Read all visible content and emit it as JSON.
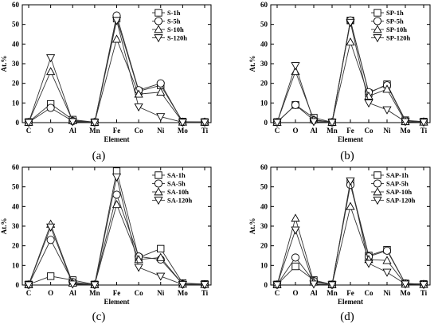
{
  "figure": {
    "panel_count": 4
  },
  "chart_data": [
    {
      "type": "line",
      "panel_label": "(a)",
      "xlabel": "Element",
      "ylabel": "At.%",
      "categories": [
        "C",
        "O",
        "Al",
        "Mn",
        "Fe",
        "Co",
        "Ni",
        "Mo",
        "Ti"
      ],
      "ylim": [
        0,
        60
      ],
      "yticks": [
        0,
        10,
        20,
        30,
        40,
        50,
        60
      ],
      "legend_position": "top-right",
      "series": [
        {
          "name": "S-1h",
          "marker": "square",
          "values": [
            0.3,
            9.5,
            1.5,
            0.2,
            53,
            16,
            19,
            0.5,
            0.3
          ]
        },
        {
          "name": "S-5h",
          "marker": "circle",
          "values": [
            0.2,
            7.5,
            0.8,
            0.2,
            54.5,
            16.5,
            20,
            0.3,
            0.3
          ]
        },
        {
          "name": "S-10h",
          "marker": "triangle-up",
          "values": [
            0.2,
            26,
            1,
            0.2,
            42.5,
            14.5,
            15.5,
            0.3,
            0.3
          ]
        },
        {
          "name": "S-120h",
          "marker": "triangle-down",
          "values": [
            0.1,
            33,
            0.5,
            0.1,
            52,
            8,
            3,
            0.2,
            0.2
          ]
        }
      ]
    },
    {
      "type": "line",
      "panel_label": "(b)",
      "xlabel": "Element",
      "ylabel": "At.%",
      "categories": [
        "C",
        "O",
        "Al",
        "Mn",
        "Fe",
        "Co",
        "Ni",
        "Mo",
        "Ti"
      ],
      "ylim": [
        0,
        60
      ],
      "yticks": [
        0,
        10,
        20,
        30,
        40,
        50,
        60
      ],
      "legend_position": "top-right",
      "series": [
        {
          "name": "SP-1h",
          "marker": "square",
          "values": [
            0.3,
            9,
            2.5,
            0.2,
            52,
            15,
            19.5,
            1.2,
            0.5
          ]
        },
        {
          "name": "SP-5h",
          "marker": "circle",
          "values": [
            0.2,
            9,
            1.2,
            0.2,
            52,
            15.5,
            19,
            1,
            0.5
          ]
        },
        {
          "name": "SP-10h",
          "marker": "triangle-up",
          "values": [
            0.2,
            26,
            1.5,
            0.2,
            41,
            13.5,
            17,
            0.5,
            0.3
          ]
        },
        {
          "name": "SP-120h",
          "marker": "triangle-down",
          "values": [
            0.1,
            29,
            0.5,
            0.1,
            51,
            10,
            6.5,
            0.5,
            0.2
          ]
        }
      ]
    },
    {
      "type": "line",
      "panel_label": "(c)",
      "xlabel": "Element",
      "ylabel": "At.%",
      "categories": [
        "C",
        "O",
        "Al",
        "Mn",
        "Fe",
        "Co",
        "Ni",
        "Mo",
        "Ti"
      ],
      "ylim": [
        0,
        60
      ],
      "yticks": [
        0,
        10,
        20,
        30,
        40,
        50,
        60
      ],
      "legend_position": "top-right",
      "series": [
        {
          "name": "SA-1h",
          "marker": "square",
          "values": [
            0.3,
            4.5,
            2.5,
            0.3,
            58,
            14,
            18.5,
            1,
            0.5
          ]
        },
        {
          "name": "SA-5h",
          "marker": "circle",
          "values": [
            0.2,
            23,
            1.5,
            0.2,
            46,
            14.5,
            13,
            0.5,
            0.3
          ]
        },
        {
          "name": "SA-10h",
          "marker": "triangle-up",
          "values": [
            0.2,
            31,
            1,
            0.2,
            41,
            13,
            14,
            0.5,
            0.3
          ]
        },
        {
          "name": "SA-120h",
          "marker": "triangle-down",
          "values": [
            0.1,
            29.5,
            0.5,
            0.1,
            55,
            9,
            4.5,
            0.3,
            0.2
          ]
        }
      ]
    },
    {
      "type": "line",
      "panel_label": "(d)",
      "xlabel": "Element",
      "ylabel": "At.%",
      "categories": [
        "C",
        "O",
        "Al",
        "Mn",
        "Fe",
        "Co",
        "Ni",
        "Mo",
        "Ti"
      ],
      "ylim": [
        0,
        60
      ],
      "yticks": [
        0,
        10,
        20,
        30,
        40,
        50,
        60
      ],
      "legend_position": "top-right",
      "series": [
        {
          "name": "SAP-1h",
          "marker": "square",
          "values": [
            0.3,
            9.5,
            2.5,
            0.3,
            52,
            15,
            18,
            0.8,
            0.5
          ]
        },
        {
          "name": "SAP-5h",
          "marker": "circle",
          "values": [
            0.2,
            14,
            2,
            0.2,
            51,
            14.5,
            17.5,
            0.8,
            0.5
          ]
        },
        {
          "name": "SAP-10h",
          "marker": "triangle-up",
          "values": [
            0.2,
            34,
            1.5,
            0.2,
            40,
            13,
            12.5,
            0.5,
            0.3
          ]
        },
        {
          "name": "SAP-120h",
          "marker": "triangle-down",
          "values": [
            0.1,
            28,
            0.5,
            0.1,
            53,
            11,
            6.5,
            0.5,
            0.2
          ]
        }
      ]
    }
  ]
}
